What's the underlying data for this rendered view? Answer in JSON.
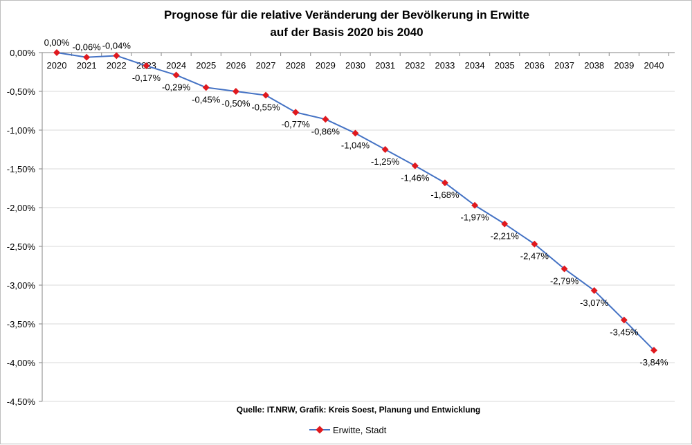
{
  "chart_data": {
    "type": "line",
    "title_line1": "Prognose für die relative Veränderung der Bevölkerung in Erwitte",
    "title_line2": "auf der Basis 2020 bis 2040",
    "source": "Quelle: IT.NRW, Grafik: Kreis Soest, Planung und Entwicklung",
    "x": [
      "2020",
      "2021",
      "2022",
      "2023",
      "2024",
      "2025",
      "2026",
      "2027",
      "2028",
      "2029",
      "2030",
      "2031",
      "2032",
      "2033",
      "2034",
      "2035",
      "2036",
      "2037",
      "2038",
      "2039",
      "2040"
    ],
    "series": [
      {
        "name": "Erwitte, Stadt",
        "values": [
          0.0,
          -0.06,
          -0.04,
          -0.17,
          -0.29,
          -0.45,
          -0.5,
          -0.55,
          -0.77,
          -0.86,
          -1.04,
          -1.25,
          -1.46,
          -1.68,
          -1.97,
          -2.21,
          -2.47,
          -2.79,
          -3.07,
          -3.45,
          -3.84
        ],
        "labels": [
          "0,00%",
          "-0,06%",
          "-0,04%",
          "-0,17%",
          "-0,29%",
          "-0,45%",
          "-0,50%",
          "-0,55%",
          "-0,77%",
          "-0,86%",
          "-1,04%",
          "-1,25%",
          "-1,46%",
          "-1,68%",
          "-1,97%",
          "-2,21%",
          "-2,47%",
          "-2,79%",
          "-3,07%",
          "-3,45%",
          "-3,84%"
        ],
        "line_color": "#4472C4",
        "marker_color": "#E0191E"
      }
    ],
    "y_ticks": [
      0,
      -0.5,
      -1.0,
      -1.5,
      -2.0,
      -2.5,
      -3.0,
      -3.5,
      -4.0,
      -4.5
    ],
    "y_tick_labels": [
      "0,00%",
      "-0,50%",
      "-1,00%",
      "-1,50%",
      "-2,00%",
      "-2,50%",
      "-3,00%",
      "-3,50%",
      "-4,00%",
      "-4,50%"
    ],
    "ylim": [
      -4.5,
      0
    ],
    "grid": true,
    "legend_position": "bottom"
  }
}
